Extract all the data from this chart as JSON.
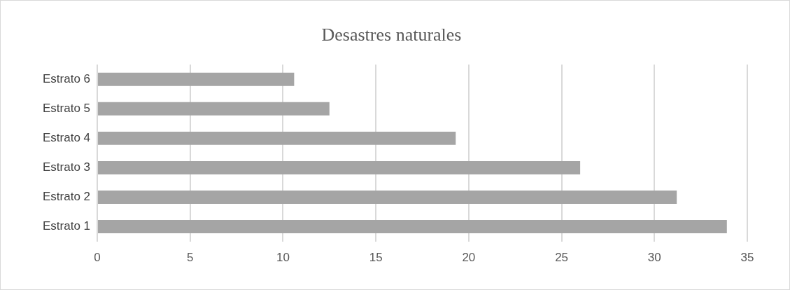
{
  "chart_data": {
    "type": "bar",
    "orientation": "horizontal",
    "title": "Desastres naturales",
    "categories": [
      "Estrato 6",
      "Estrato 5",
      "Estrato 4",
      "Estrato 3",
      "Estrato 2",
      "Estrato 1"
    ],
    "values": [
      10.6,
      12.5,
      19.3,
      26,
      31.2,
      33.9
    ],
    "color": "#a5a5a5",
    "xlim": [
      0,
      35
    ],
    "xticks": [
      0,
      5,
      10,
      15,
      20,
      25,
      30,
      35
    ],
    "grid": "x",
    "legend": false
  }
}
